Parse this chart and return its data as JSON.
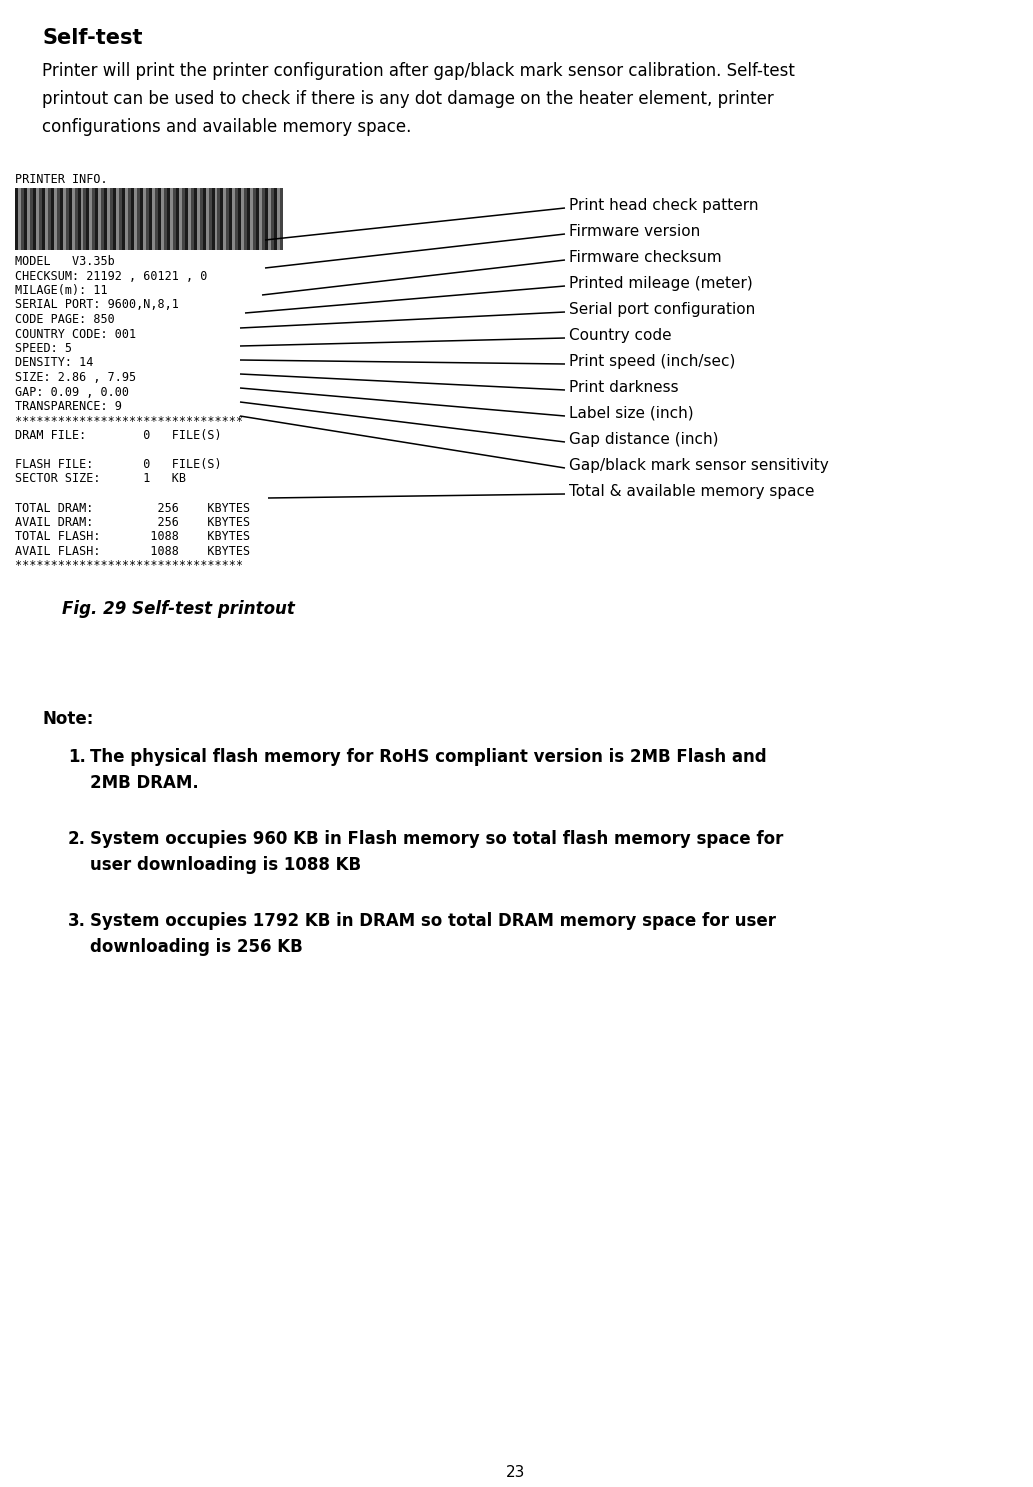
{
  "title": "Self-test",
  "title_fontsize": 15,
  "body_text_line1": "Printer will print the printer configuration after gap/black mark sensor calibration. Self-test",
  "body_text_line2": "printout can be used to check if there is any dot damage on the heater element, printer",
  "body_text_line3": "configurations and available memory space.",
  "body_fontsize": 12,
  "printer_info_line": "PRINTER INFO.",
  "model_line": "MODEL   V3.35b",
  "content_lines": [
    [
      "CHECKSUM: 21192 , 60121 , 0",
      0
    ],
    [
      "MILAGE(m): 11",
      1
    ],
    [
      "SERIAL PORT: 9600,N,8,1",
      2
    ],
    [
      "CODE PAGE: 850",
      3
    ],
    [
      "COUNTRY CODE: 001",
      4
    ],
    [
      "SPEED: 5",
      5
    ],
    [
      "DENSITY: 14",
      6
    ],
    [
      "SIZE: 2.86 , 7.95",
      7
    ],
    [
      "GAP: 0.09 , 0.00",
      8
    ],
    [
      "TRANSPARENCE: 9",
      9
    ],
    [
      "********************************",
      10
    ],
    [
      "DRAM FILE:        0   FILE(S)",
      11
    ],
    [
      "FLASH FILE:       0   FILE(S)",
      13
    ],
    [
      "SECTOR SIZE:      1   KB",
      14
    ],
    [
      "TOTAL DRAM:         256    KBYTES",
      16
    ],
    [
      "AVAIL DRAM:         256    KBYTES",
      17
    ],
    [
      "TOTAL FLASH:       1088    KBYTES",
      18
    ],
    [
      "AVAIL FLASH:       1088    KBYTES",
      19
    ],
    [
      "********************************",
      20
    ]
  ],
  "annot_data": [
    [
      "Print head check pattern",
      565,
      198,
      265,
      240
    ],
    [
      "Firmware version",
      565,
      224,
      265,
      268
    ],
    [
      "Firmware checksum",
      565,
      250,
      262,
      295
    ],
    [
      "Printed mileage (meter)",
      565,
      276,
      245,
      313
    ],
    [
      "Serial port configuration",
      565,
      302,
      240,
      328
    ],
    [
      "Country code",
      565,
      328,
      240,
      346
    ],
    [
      "Print speed (inch/sec)",
      565,
      354,
      240,
      360
    ],
    [
      "Print darkness",
      565,
      380,
      240,
      374
    ],
    [
      "Label size (inch)",
      565,
      406,
      240,
      388
    ],
    [
      "Gap distance (inch)",
      565,
      432,
      240,
      402
    ],
    [
      "Gap/black mark sensor sensitivity",
      565,
      458,
      240,
      416
    ],
    [
      "Total & available memory space",
      565,
      484,
      268,
      498
    ]
  ],
  "fig_caption": "Fig. 29 Self-test printout",
  "note_title": "Note:",
  "notes": [
    [
      "The physical flash memory for RoHS compliant version is 2MB Flash and",
      "2MB DRAM."
    ],
    [
      "System occupies 960 KB in Flash memory so total flash memory space for",
      "user downloading is 1088 KB"
    ],
    [
      "System occupies 1792 KB in DRAM so total DRAM memory space for user",
      "downloading is 256 KB"
    ]
  ],
  "page_number": "23",
  "bg_color": "#ffffff",
  "text_color": "#000000",
  "mono_fontsize": 8.5,
  "annotation_fontsize": 11,
  "note_fontsize": 12,
  "caption_fontsize": 12
}
